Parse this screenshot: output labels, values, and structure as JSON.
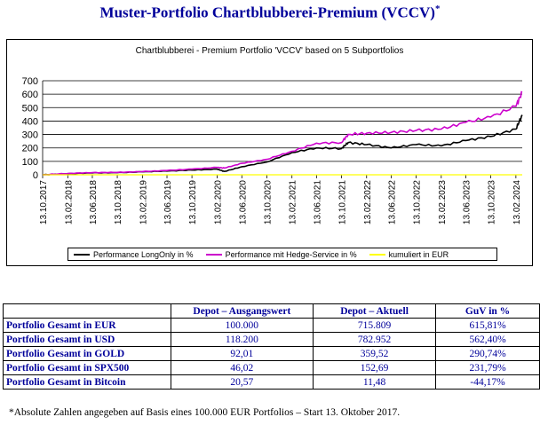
{
  "page": {
    "title": "Muster-Portfolio Chartblubberei-Premium (VCCV)",
    "title_mark": "*",
    "footnote": "*Absolute Zahlen angegeben auf Basis eines 100.000 EUR Portfolios – Start 13. Oktober 2017."
  },
  "chart_data": {
    "type": "line",
    "title": "Chartblubberei - Premium Portfolio 'VCCV' based on 5 Subportfolios",
    "xlabel": "",
    "ylabel": "",
    "ylim": [
      0,
      700
    ],
    "yticks": [
      0,
      100,
      200,
      300,
      400,
      500,
      600,
      700
    ],
    "grid": true,
    "legend_position": "bottom",
    "x_tick_labels": [
      "13.10.2017",
      "13.02.2018",
      "13.06.2018",
      "13.10.2018",
      "13.02.2019",
      "13.06.2019",
      "13.10.2019",
      "13.02.2020",
      "13.06.2020",
      "13.10.2020",
      "13.02.2021",
      "13.06.2021",
      "13.10.2021",
      "13.02.2022",
      "13.06.2022",
      "13.10.2022",
      "13.02.2023",
      "13.06.2023",
      "13.10.2023",
      "13.02.2024"
    ],
    "x": [
      "2017-10-13",
      "2018-02-13",
      "2018-06-13",
      "2018-10-13",
      "2019-02-13",
      "2019-06-13",
      "2019-10-13",
      "2020-02-13",
      "2020-03-20",
      "2020-06-13",
      "2020-10-13",
      "2021-02-13",
      "2021-06-13",
      "2021-10-13",
      "2021-11-15",
      "2022-02-13",
      "2022-06-13",
      "2022-10-13",
      "2023-02-13",
      "2023-06-13",
      "2023-10-13",
      "2024-02-13",
      "2024-03-15"
    ],
    "series": [
      {
        "name": "Performance LongOnly in %",
        "color": "#000000",
        "values": [
          0,
          8,
          14,
          16,
          22,
          28,
          35,
          42,
          25,
          60,
          95,
          165,
          200,
          195,
          240,
          225,
          200,
          225,
          215,
          255,
          285,
          340,
          445
        ]
      },
      {
        "name": "Performance mit Hedge-Service in %",
        "color": "#cc00cc",
        "values": [
          0,
          10,
          16,
          18,
          24,
          32,
          42,
          55,
          50,
          85,
          115,
          175,
          235,
          240,
          300,
          310,
          315,
          330,
          340,
          390,
          430,
          510,
          615
        ]
      },
      {
        "name": "kumuliert in EUR",
        "color": "#ffff00",
        "values": [
          0,
          0,
          0,
          0,
          0,
          0,
          0,
          0,
          0,
          0,
          0,
          0,
          0,
          0,
          0,
          0,
          0,
          0,
          0,
          0,
          0,
          0,
          0
        ]
      }
    ]
  },
  "table": {
    "headers": [
      "",
      "Depot – Ausgangswert",
      "Depot – Aktuell",
      "GuV in %"
    ],
    "rows": [
      [
        "Portfolio Gesamt in EUR",
        "100.000",
        "715.809",
        "615,81%"
      ],
      [
        "Portfolio Gesamt in USD",
        "118.200",
        "782.952",
        "562,40%"
      ],
      [
        "Portfolio Gesamt in GOLD",
        "92,01",
        "359,52",
        "290,74%"
      ],
      [
        "Portfolio Gesamt in SPX500",
        "46,02",
        "152,69",
        "231,79%"
      ],
      [
        "Portfolio Gesamt in Bitcoin",
        "20,57",
        "11,48",
        "-44,17%"
      ]
    ]
  }
}
